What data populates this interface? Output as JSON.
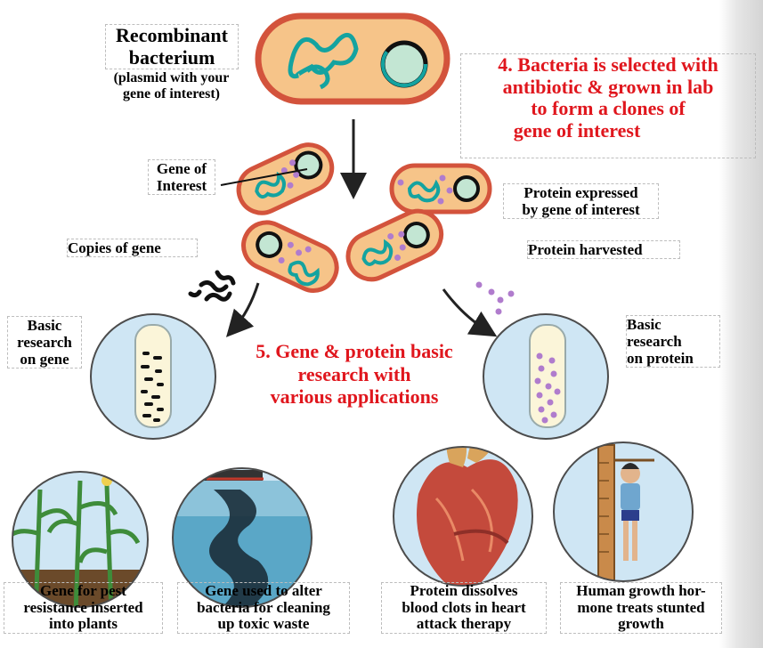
{
  "title": {
    "line1": "Recombinant",
    "line2": "bacterium",
    "line3": "(plasmid with your",
    "line4": "gene of interest)"
  },
  "step4": {
    "line1": "4. Bacteria is selected with",
    "line2": "antibiotic & grown in lab",
    "line3": "to form a clones of",
    "line4": "gene of interest"
  },
  "step5": {
    "line1": "5. Gene & protein basic",
    "line2": "research with",
    "line3": "various applications"
  },
  "labels": {
    "gene_of_interest": [
      "Gene of",
      "Interest"
    ],
    "copies_of_gene": "Copies of gene",
    "protein_expressed": [
      "Protein expressed",
      "by gene of interest"
    ],
    "protein_harvested": "Protein harvested",
    "basic_research_gene": [
      "Basic",
      "research",
      "on gene"
    ],
    "basic_research_protein": [
      "Basic",
      "research",
      "on protein"
    ]
  },
  "applications": [
    {
      "lines": [
        "Gene for pest",
        "resistance inserted",
        "into plants"
      ]
    },
    {
      "lines": [
        "Gene used to alter",
        "bacteria for cleaning",
        "up toxic waste"
      ]
    },
    {
      "lines": [
        "Protein dissolves",
        "blood clots in heart",
        "attack therapy"
      ]
    },
    {
      "lines": [
        "Human growth hor-",
        "mone treats stunted",
        "growth"
      ]
    }
  ],
  "colors": {
    "accent_red": "#e0161d",
    "cell_fill": "#f6c489",
    "cell_border": "#d3533c",
    "dna": "#14a3a0",
    "protein_dot": "#b07ccd",
    "circle_fill": "#cfe6f4"
  }
}
